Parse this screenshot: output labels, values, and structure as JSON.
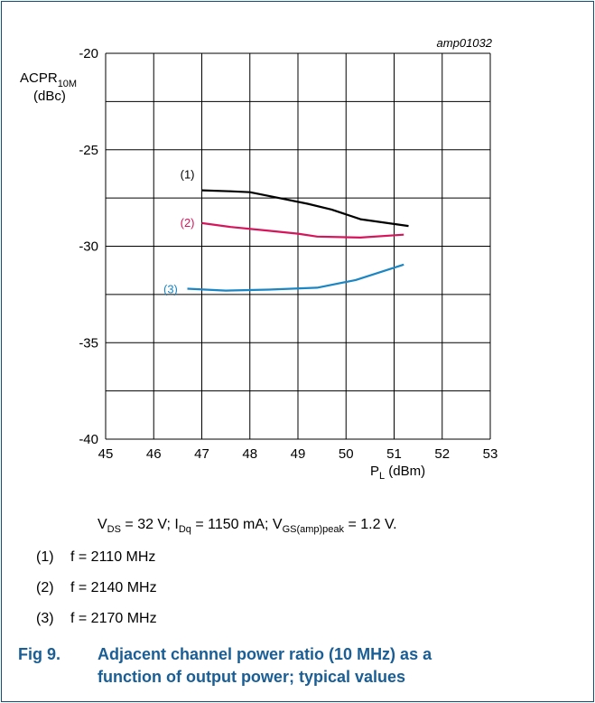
{
  "chart_data": {
    "type": "line",
    "figure_id": "amp01032",
    "ylabel_main": "ACPR",
    "ylabel_sub": "10M",
    "ylabel_unit": "(dBc)",
    "xlabel_main": "P",
    "xlabel_sub": "L",
    "xlabel_unit": " (dBm)",
    "xlim": [
      45,
      53
    ],
    "ylim": [
      -40,
      -20
    ],
    "x_ticks": [
      "45",
      "46",
      "47",
      "48",
      "49",
      "50",
      "51",
      "52",
      "53"
    ],
    "y_ticks": [
      "-20",
      "-25",
      "-30",
      "-35",
      "-40"
    ],
    "grid": true,
    "series": [
      {
        "name": "(1)",
        "color": "#000000",
        "points": [
          [
            47.0,
            -27.1
          ],
          [
            47.6,
            -27.15
          ],
          [
            48.0,
            -27.2
          ],
          [
            48.6,
            -27.5
          ],
          [
            49.2,
            -27.8
          ],
          [
            49.7,
            -28.1
          ],
          [
            50.3,
            -28.6
          ],
          [
            51.3,
            -28.95
          ]
        ],
        "label_at": [
          46.85,
          -26.3
        ]
      },
      {
        "name": "(2)",
        "color": "#d6155a",
        "points": [
          [
            47.0,
            -28.8
          ],
          [
            47.6,
            -29.0
          ],
          [
            48.4,
            -29.2
          ],
          [
            49.0,
            -29.35
          ],
          [
            49.4,
            -29.5
          ],
          [
            50.3,
            -29.55
          ],
          [
            51.2,
            -29.4
          ]
        ],
        "label_at": [
          46.85,
          -28.8
        ]
      },
      {
        "name": "(3)",
        "color": "#1b86c4",
        "points": [
          [
            46.7,
            -32.2
          ],
          [
            47.5,
            -32.3
          ],
          [
            48.4,
            -32.25
          ],
          [
            49.4,
            -32.15
          ],
          [
            50.2,
            -31.75
          ],
          [
            51.2,
            -30.95
          ]
        ],
        "label_at": [
          46.5,
          -32.25
        ]
      }
    ]
  },
  "conditions": {
    "vds": "V",
    "vds_sub": "DS",
    "vds_val": " = 32 V; I",
    "idq_sub": "Dq",
    "idq_val": " = 1150 mA; V",
    "vgs_sub": "GS(amp)peak",
    "vgs_val": " = 1.2 V."
  },
  "legend": [
    {
      "num": "(1)",
      "text": "f = 2110 MHz"
    },
    {
      "num": "(2)",
      "text": "f = 2140 MHz"
    },
    {
      "num": "(3)",
      "text": "f = 2170 MHz"
    }
  ],
  "caption": {
    "label": "Fig 9.",
    "line1": "Adjacent channel power ratio (10 MHz) as a",
    "line2": "function of output power; typical values"
  },
  "colors": {
    "frame": "#0f4f7a",
    "caption": "#1a5e96",
    "series1": "#000000",
    "series2": "#d6155a",
    "series3": "#1b86c4"
  }
}
